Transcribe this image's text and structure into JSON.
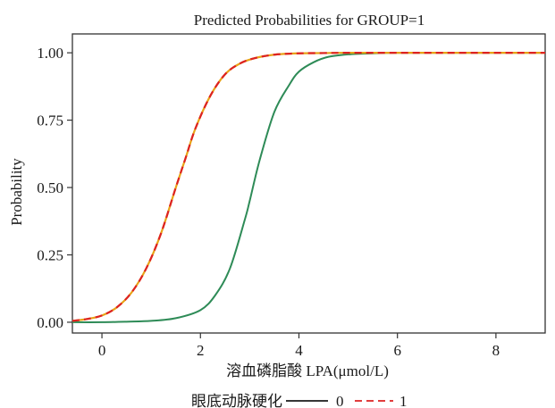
{
  "chart_data": {
    "type": "line",
    "title": "Predicted Probabilities for GROUP=1",
    "xlabel": "溶血磷脂酸 LPA(μmol/L)",
    "ylabel": "Probability",
    "xlim": [
      -0.6,
      9.0
    ],
    "ylim": [
      -0.04,
      1.07
    ],
    "xticks": [
      0,
      2,
      4,
      6,
      8
    ],
    "xtick_labels": [
      "0",
      "2",
      "4",
      "6",
      "8"
    ],
    "yticks": [
      0.0,
      0.25,
      0.5,
      0.75,
      1.0
    ],
    "ytick_labels": [
      "0.00",
      "0.25",
      "0.50",
      "0.75",
      "1.00"
    ],
    "grid": false,
    "legend": {
      "title": "眼底动脉硬化",
      "placement": "bottom",
      "entries": [
        {
          "label": "0",
          "color": "#2e8b57",
          "style": "solid"
        },
        {
          "label": "1",
          "color": "#dd2222",
          "style": "dashed"
        }
      ]
    },
    "series": [
      {
        "name": "0",
        "color": "#2e8b57",
        "style": "solid",
        "x": [
          -0.6,
          0.0,
          0.5,
          1.0,
          1.5,
          2.0,
          2.3,
          2.6,
          2.9,
          3.0,
          3.2,
          3.5,
          3.8,
          4.0,
          4.3,
          4.6,
          5.0,
          5.5,
          6.0,
          7.0,
          8.0,
          9.0
        ],
        "y": [
          0.0,
          0.0,
          0.002,
          0.005,
          0.015,
          0.045,
          0.1,
          0.2,
          0.38,
          0.45,
          0.6,
          0.78,
          0.88,
          0.93,
          0.965,
          0.985,
          0.994,
          0.998,
          1.0,
          1.0,
          1.0,
          1.0
        ]
      },
      {
        "name": "1",
        "color": "#dd2222",
        "style": "dashed",
        "x": [
          -0.6,
          -0.3,
          0.0,
          0.3,
          0.6,
          0.9,
          1.2,
          1.5,
          1.7,
          1.9,
          2.2,
          2.5,
          2.8,
          3.1,
          3.5,
          4.0,
          4.5,
          5.0,
          6.0,
          7.0,
          8.0,
          9.0
        ],
        "y": [
          0.005,
          0.012,
          0.025,
          0.055,
          0.11,
          0.2,
          0.33,
          0.5,
          0.61,
          0.72,
          0.84,
          0.92,
          0.96,
          0.98,
          0.993,
          0.998,
          0.999,
          1.0,
          1.0,
          1.0,
          1.0,
          1.0
        ]
      }
    ]
  }
}
